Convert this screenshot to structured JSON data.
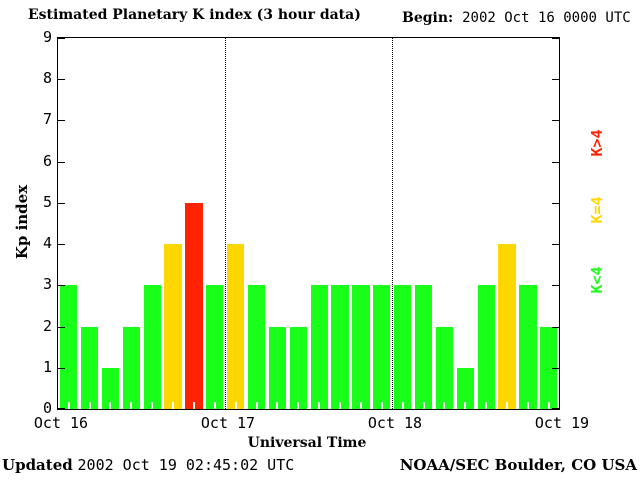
{
  "title": "Estimated Planetary K index (3 hour data)",
  "begin": {
    "label": "Begin:",
    "value": "2002 Oct 16 0000 UTC"
  },
  "footer": {
    "updated_label": "Updated",
    "updated_time": "2002 Oct 19 02:45:02 UTC",
    "source": "NOAA/SEC Boulder, CO USA"
  },
  "chart_data": {
    "type": "bar",
    "title": "Estimated Planetary K index (3 hour data)",
    "xlabel": "Universal Time",
    "ylabel": "Kp index",
    "ylim": [
      0,
      9
    ],
    "y_ticks": [
      0,
      1,
      2,
      3,
      4,
      5,
      6,
      7,
      8,
      9
    ],
    "x_tick_labels": [
      "Oct 16",
      "Oct 17",
      "Oct 18",
      "Oct 19"
    ],
    "interval_hours": 3,
    "bars_per_day": 8,
    "values": [
      3,
      2,
      1,
      2,
      3,
      4,
      5,
      3,
      4,
      3,
      2,
      2,
      3,
      3,
      3,
      3,
      3,
      3,
      2,
      1,
      3,
      4,
      3,
      2
    ],
    "color_thresholds": {
      "below_4": "#1aff1a",
      "equal_4": "#ffd700",
      "above_4": "#ff2200"
    },
    "legend": [
      {
        "label": "K<4",
        "color": "#1aff1a"
      },
      {
        "label": "K=4",
        "color": "#ffd700"
      },
      {
        "label": "K>4",
        "color": "#ff2200"
      }
    ],
    "grid": "dotted vertical lines at day boundaries",
    "legend_position": "right, rotated 90deg"
  }
}
